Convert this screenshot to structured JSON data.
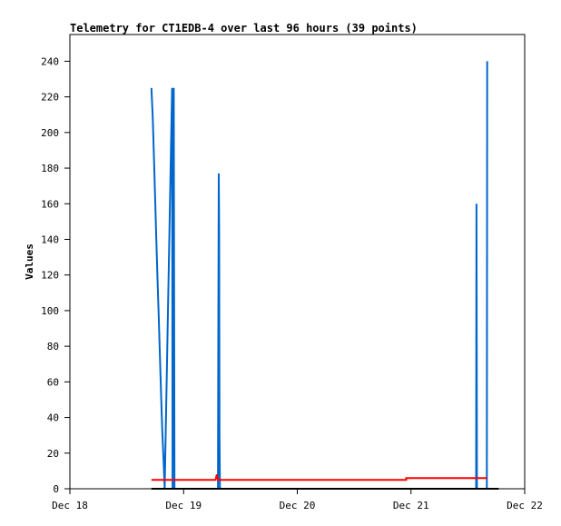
{
  "chart_data": {
    "type": "line",
    "title": "Telemetry for CT1EDB-4 over last 96 hours (39 points)",
    "xlabel": "",
    "ylabel": "Values",
    "xlim": [
      "Dec 18 00:00",
      "Dec 22 00:00"
    ],
    "ylim": [
      0,
      255
    ],
    "x_ticks": [
      "Dec 18",
      "Dec 19",
      "Dec 20",
      "Dec 21",
      "Dec 22"
    ],
    "y_ticks": [
      0,
      20,
      40,
      60,
      80,
      100,
      120,
      140,
      160,
      180,
      200,
      220,
      240
    ],
    "grid": false,
    "series": [
      {
        "color": "#0066cc",
        "points": [
          [
            "Dec 18 17:12",
            225
          ],
          [
            "Dec 18 17:30",
            208
          ],
          [
            "Dec 18 17:45",
            186
          ],
          [
            "Dec 18 18:00",
            163
          ],
          [
            "Dec 18 18:15",
            140
          ],
          [
            "Dec 18 18:30",
            118
          ],
          [
            "Dec 18 18:45",
            96
          ],
          [
            "Dec 18 19:00",
            74
          ],
          [
            "Dec 18 19:15",
            52
          ],
          [
            "Dec 18 19:30",
            32
          ],
          [
            "Dec 18 19:45",
            17
          ],
          [
            "Dec 18 20:00",
            0
          ],
          [
            "Dec 18 21:35",
            225
          ],
          [
            "Dec 18 21:40",
            0
          ],
          [
            "Dec 18 21:45",
            168
          ],
          [
            "Dec 18 21:50",
            57
          ],
          [
            "Dec 18 21:55",
            225
          ],
          [
            "Dec 18 22:00",
            112
          ],
          [
            "Dec 18 22:05",
            0
          ],
          [
            "Dec 19 07:15",
            0
          ],
          [
            "Dec 19 07:20",
            88
          ],
          [
            "Dec 19 07:25",
            177
          ],
          [
            "Dec 19 07:30",
            147
          ],
          [
            "Dec 19 07:35",
            30
          ],
          [
            "Dec 19 07:40",
            0
          ],
          [
            "Dec 21 13:45",
            0
          ],
          [
            "Dec 21 13:50",
            160
          ],
          [
            "Dec 21 13:55",
            0
          ],
          [
            "Dec 21 16:00",
            0
          ],
          [
            "Dec 21 16:05",
            240
          ]
        ]
      },
      {
        "color": "#ff0000",
        "points": [
          [
            "Dec 18 17:12",
            5
          ],
          [
            "Dec 19 06:45",
            5
          ],
          [
            "Dec 19 07:00",
            8
          ],
          [
            "Dec 19 07:15",
            5
          ],
          [
            "Dec 20 23:00",
            5
          ],
          [
            "Dec 20 23:00",
            6
          ],
          [
            "Dec 21 16:05",
            6
          ]
        ]
      },
      {
        "color": "#000000",
        "points": [
          [
            "Dec 18 17:12",
            0
          ],
          [
            "Dec 21 18:30",
            0
          ]
        ]
      }
    ]
  }
}
